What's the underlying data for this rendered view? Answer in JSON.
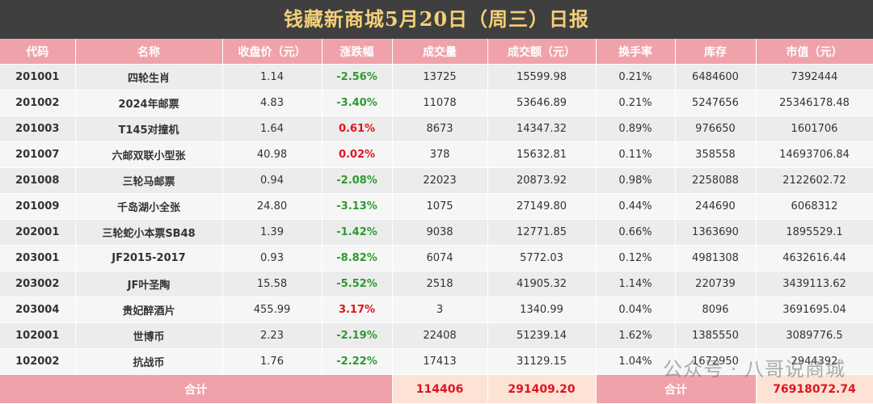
{
  "header": {
    "title": "钱藏新商城5月20日（周三）日报"
  },
  "table": {
    "columns": [
      "代码",
      "名称",
      "收盘价（元）",
      "涨跌幅",
      "成交量",
      "成交额（元）",
      "换手率",
      "库存",
      "市值（元）"
    ],
    "rows": [
      [
        "201001",
        "四轮生肖",
        "1.14",
        "-2.56%",
        "13725",
        "15599.98",
        "0.21%",
        "6484600",
        "7392444"
      ],
      [
        "201002",
        "2024年邮票",
        "4.83",
        "-3.40%",
        "11078",
        "53646.89",
        "0.21%",
        "5247656",
        "25346178.48"
      ],
      [
        "201003",
        "T145对撞机",
        "1.64",
        "0.61%",
        "8673",
        "14347.32",
        "0.89%",
        "976650",
        "1601706"
      ],
      [
        "201007",
        "六邮双联小型张",
        "40.98",
        "0.02%",
        "378",
        "15632.81",
        "0.11%",
        "358558",
        "14693706.84"
      ],
      [
        "201008",
        "三轮马邮票",
        "0.94",
        "-2.08%",
        "22023",
        "20873.92",
        "0.98%",
        "2258088",
        "2122602.72"
      ],
      [
        "201009",
        "千岛湖小全张",
        "24.80",
        "-3.13%",
        "1075",
        "27149.80",
        "0.44%",
        "244690",
        "6068312"
      ],
      [
        "202001",
        "三轮蛇小本票SB48",
        "1.39",
        "-1.42%",
        "9038",
        "12771.85",
        "0.66%",
        "1363690",
        "1895529.1"
      ],
      [
        "203001",
        "JF2015-2017",
        "0.93",
        "-8.82%",
        "6074",
        "5772.03",
        "0.12%",
        "4981308",
        "4632616.44"
      ],
      [
        "203002",
        "JF叶圣陶",
        "15.58",
        "-5.52%",
        "2518",
        "41905.32",
        "1.14%",
        "220739",
        "3439113.62"
      ],
      [
        "203004",
        "贵妃醉酒片",
        "455.99",
        "3.17%",
        "3",
        "1340.99",
        "0.04%",
        "8096",
        "3691695.04"
      ],
      [
        "102001",
        "世博币",
        "2.23",
        "-2.19%",
        "22408",
        "51239.14",
        "1.62%",
        "1385550",
        "3089776.5"
      ],
      [
        "102002",
        "抗战币",
        "1.76",
        "-2.22%",
        "17413",
        "31129.15",
        "1.04%",
        "1672950",
        "2944392"
      ]
    ],
    "footer": [
      "合计",
      "114406",
      "291409.20",
      "合计",
      "76918072.74"
    ]
  },
  "watermark": "公众号 · 八哥说商城"
}
